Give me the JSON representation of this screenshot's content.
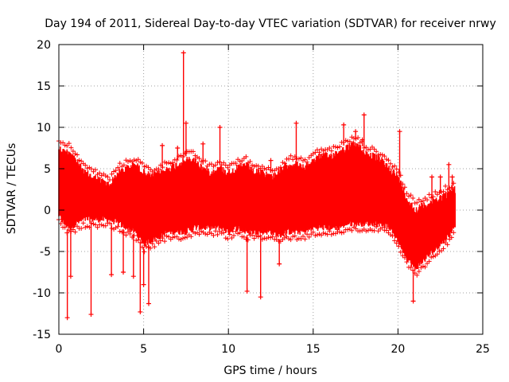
{
  "chart_data": {
    "type": "scatter",
    "title": "Day 194 of 2011, Sidereal Day-to-day VTEC variation (SDTVAR) for receiver nrwy",
    "xlabel": "GPS time / hours",
    "ylabel": "SDTVAR / TECUs",
    "xlim": [
      0,
      25
    ],
    "ylim": [
      -15,
      20
    ],
    "x_ticks": [
      0,
      5,
      10,
      15,
      20,
      25
    ],
    "y_ticks": [
      -15,
      -10,
      -5,
      0,
      5,
      10,
      15,
      20
    ],
    "grid": true,
    "series": [
      {
        "name": "SDTVAR",
        "color": "#ff0000",
        "marker": "plus",
        "x_range_hours": [
          0,
          23.4
        ],
        "envelope": {
          "x": [
            0,
            0.3,
            0.7,
            1.0,
            1.5,
            2.0,
            2.5,
            3.0,
            3.5,
            4.0,
            4.5,
            5.0,
            5.5,
            6.0,
            6.5,
            7.0,
            7.5,
            8.0,
            8.5,
            9.0,
            9.5,
            10.0,
            10.5,
            11.0,
            11.5,
            12.0,
            12.5,
            13.0,
            13.5,
            14.0,
            14.5,
            15.0,
            15.5,
            16.0,
            16.5,
            17.0,
            17.5,
            18.0,
            18.5,
            19.0,
            19.5,
            20.0,
            20.5,
            21.0,
            21.5,
            22.0,
            22.5,
            23.0,
            23.4
          ],
          "upper": [
            8.0,
            7.5,
            7.5,
            6.5,
            5.0,
            4.5,
            4.0,
            3.5,
            5.0,
            5.5,
            6.0,
            5.0,
            4.5,
            5.0,
            5.5,
            6.0,
            6.5,
            6.5,
            5.5,
            5.0,
            5.5,
            5.0,
            5.5,
            6.0,
            5.0,
            5.0,
            4.5,
            5.0,
            6.0,
            6.0,
            5.5,
            6.5,
            7.0,
            7.0,
            7.5,
            8.0,
            8.5,
            7.5,
            7.0,
            6.5,
            5.5,
            4.5,
            2.0,
            0.5,
            1.0,
            1.5,
            2.0,
            2.5,
            3.0
          ],
          "lower": [
            -1.0,
            -2.0,
            -2.5,
            -2.0,
            -1.5,
            -1.5,
            -1.5,
            -1.5,
            -2.0,
            -2.5,
            -3.0,
            -4.5,
            -4.0,
            -3.5,
            -3.0,
            -3.0,
            -3.0,
            -2.5,
            -2.5,
            -2.5,
            -2.5,
            -3.0,
            -2.5,
            -3.0,
            -3.0,
            -3.0,
            -3.0,
            -3.5,
            -3.0,
            -3.0,
            -3.0,
            -2.5,
            -2.5,
            -2.5,
            -2.5,
            -2.0,
            -2.0,
            -2.0,
            -2.0,
            -2.0,
            -2.5,
            -4.0,
            -6.0,
            -7.5,
            -6.5,
            -5.5,
            -4.5,
            -3.5,
            -2.0
          ]
        },
        "spikes": [
          {
            "x": 0.5,
            "y": -13.0
          },
          {
            "x": 0.7,
            "y": -8.0
          },
          {
            "x": 1.9,
            "y": -12.6
          },
          {
            "x": 3.1,
            "y": -7.8
          },
          {
            "x": 3.8,
            "y": -7.5
          },
          {
            "x": 4.4,
            "y": -8.0
          },
          {
            "x": 4.8,
            "y": -12.3
          },
          {
            "x": 5.0,
            "y": -9.0
          },
          {
            "x": 5.3,
            "y": -11.3
          },
          {
            "x": 6.1,
            "y": 7.8
          },
          {
            "x": 7.0,
            "y": 7.5
          },
          {
            "x": 7.35,
            "y": 19.0
          },
          {
            "x": 7.5,
            "y": 10.5
          },
          {
            "x": 8.5,
            "y": 8.0
          },
          {
            "x": 9.5,
            "y": 10.0
          },
          {
            "x": 11.1,
            "y": -9.8
          },
          {
            "x": 11.9,
            "y": -10.5
          },
          {
            "x": 12.5,
            "y": 6.0
          },
          {
            "x": 13.0,
            "y": -6.5
          },
          {
            "x": 14.0,
            "y": 10.5
          },
          {
            "x": 16.8,
            "y": 10.3
          },
          {
            "x": 17.5,
            "y": 9.5
          },
          {
            "x": 17.9,
            "y": 8.5
          },
          {
            "x": 18.0,
            "y": 11.5
          },
          {
            "x": 20.1,
            "y": 9.5
          },
          {
            "x": 20.9,
            "y": -11.0
          },
          {
            "x": 22.0,
            "y": 4.0
          },
          {
            "x": 22.5,
            "y": 4.0
          },
          {
            "x": 23.0,
            "y": 5.5
          },
          {
            "x": 23.2,
            "y": 4.0
          }
        ]
      }
    ]
  }
}
